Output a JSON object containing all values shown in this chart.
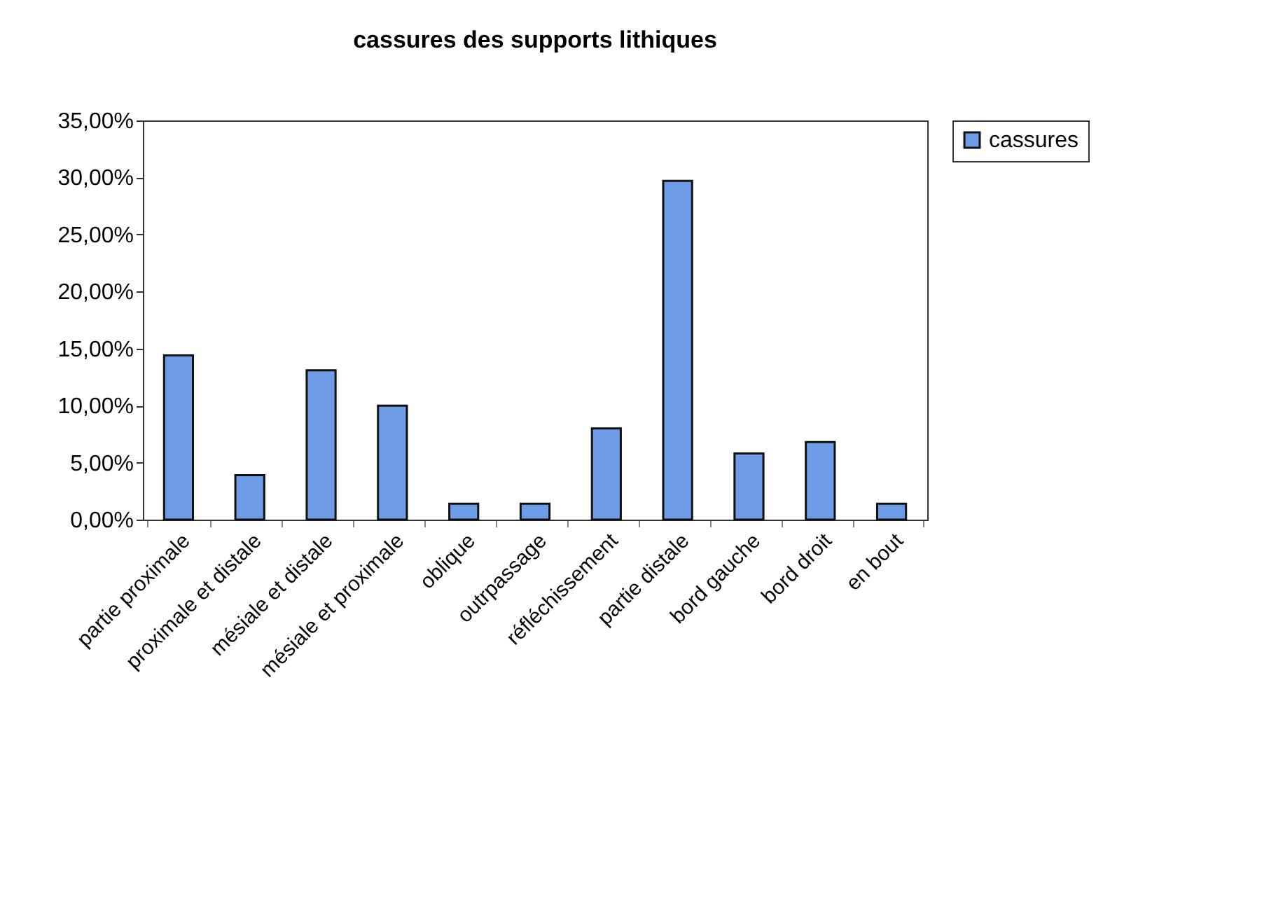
{
  "chart_data": {
    "type": "bar",
    "title": "cassures des supports lithiques",
    "categories": [
      "partie proximale",
      "proximale et distale",
      "mésiale et distale",
      "mésiale et proximale",
      "oblique",
      "outrpassage",
      "réfléchissement",
      "partie distale",
      "bord gauche",
      "bord droit",
      "en bout"
    ],
    "series": [
      {
        "name": "cassures",
        "color": "#6f9ce6",
        "values": [
          14.4,
          3.9,
          13.1,
          10.0,
          1.4,
          1.4,
          8.0,
          29.7,
          5.8,
          6.8,
          1.4
        ]
      }
    ],
    "ylim": [
      0,
      35
    ],
    "yticks": [
      {
        "value": 0,
        "label": "0,00%"
      },
      {
        "value": 5,
        "label": "5,00%"
      },
      {
        "value": 10,
        "label": "10,00%"
      },
      {
        "value": 15,
        "label": "15,00%"
      },
      {
        "value": 20,
        "label": "20,00%"
      },
      {
        "value": 25,
        "label": "25,00%"
      },
      {
        "value": 30,
        "label": "30,00%"
      },
      {
        "value": 35,
        "label": "35,00%"
      }
    ],
    "grid": false,
    "legend": "right"
  }
}
